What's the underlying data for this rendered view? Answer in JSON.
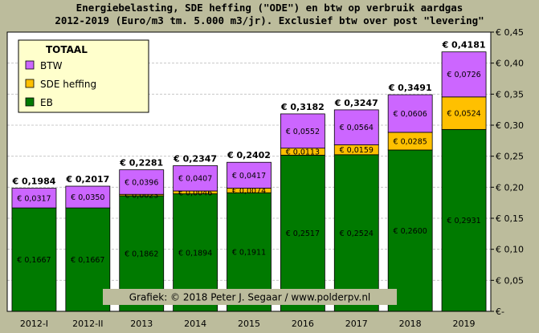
{
  "chart_data": {
    "type": "bar",
    "stacked": true,
    "title_line1": "Energiebelasting,  SDE heffing (\"ODE\")  en btw op verbruik aardgas",
    "title_line2": "2012-2019 (Euro/m3 tm. 5.000 m3/jr). Exclusief btw over post \"levering\"",
    "categories": [
      "2012-I",
      "2012-II",
      "2013",
      "2014",
      "2015",
      "2016",
      "2017",
      "2018",
      "2019"
    ],
    "series": [
      {
        "name": "EB",
        "color": "#007a00",
        "values": [
          0.1667,
          0.1667,
          0.1862,
          0.1894,
          0.1911,
          0.2517,
          0.2524,
          0.26,
          0.2931
        ],
        "labels": [
          "€ 0,1667",
          "€ 0,1667",
          "€ 0,1862",
          "€ 0,1894",
          "€ 0,1911",
          "€ 0,2517",
          "€ 0,2524",
          "€ 0,2600",
          "€ 0,2931"
        ]
      },
      {
        "name": "SDE heffing",
        "color": "#ffc000",
        "values": [
          0,
          0,
          0.0023,
          0.0046,
          0.0074,
          0.0113,
          0.0159,
          0.0285,
          0.0524
        ],
        "labels": [
          "",
          "",
          "€ 0,0023",
          "€ 0,0046",
          "€ 0,0074",
          "€ 0,0113",
          "€ 0,0159",
          "€ 0,0285",
          "€ 0,0524"
        ]
      },
      {
        "name": "BTW",
        "color": "#cc66ff",
        "values": [
          0.0317,
          0.035,
          0.0396,
          0.0407,
          0.0417,
          0.0552,
          0.0564,
          0.0606,
          0.0726
        ],
        "labels": [
          "€ 0,0317",
          "€ 0,0350",
          "€ 0,0396",
          "€ 0,0407",
          "€ 0,0417",
          "€ 0,0552",
          "€ 0,0564",
          "€ 0,0606",
          "€ 0,0726"
        ]
      }
    ],
    "totals": [
      "€ 0,1984",
      "€ 0,2017",
      "€ 0,2281",
      "€ 0,2347",
      "€ 0,2402",
      "€ 0,3182",
      "€ 0,3247",
      "€ 0,3491",
      "€ 0,4181"
    ],
    "ylim": [
      0,
      0.45
    ],
    "yticks": [
      0,
      0.05,
      0.1,
      0.15,
      0.2,
      0.25,
      0.3,
      0.35,
      0.4,
      0.45
    ],
    "ytick_labels": [
      "€-",
      "€ 0,05",
      "€ 0,10",
      "€ 0,15",
      "€ 0,20",
      "€ 0,25",
      "€ 0,30",
      "€ 0,35",
      "€ 0,40",
      "€ 0,45"
    ],
    "ytick_position": "right",
    "grid": true,
    "legend_title": "TOTAAL",
    "legend_position": "top-left",
    "legend_order": [
      "BTW",
      "SDE heffing",
      "EB"
    ],
    "credit": "Grafiek:  © 2018  Peter J. Segaar / www.polderpv.nl",
    "colors": {
      "background": "#bcbc9c",
      "plot_background": "#ffffff"
    }
  }
}
